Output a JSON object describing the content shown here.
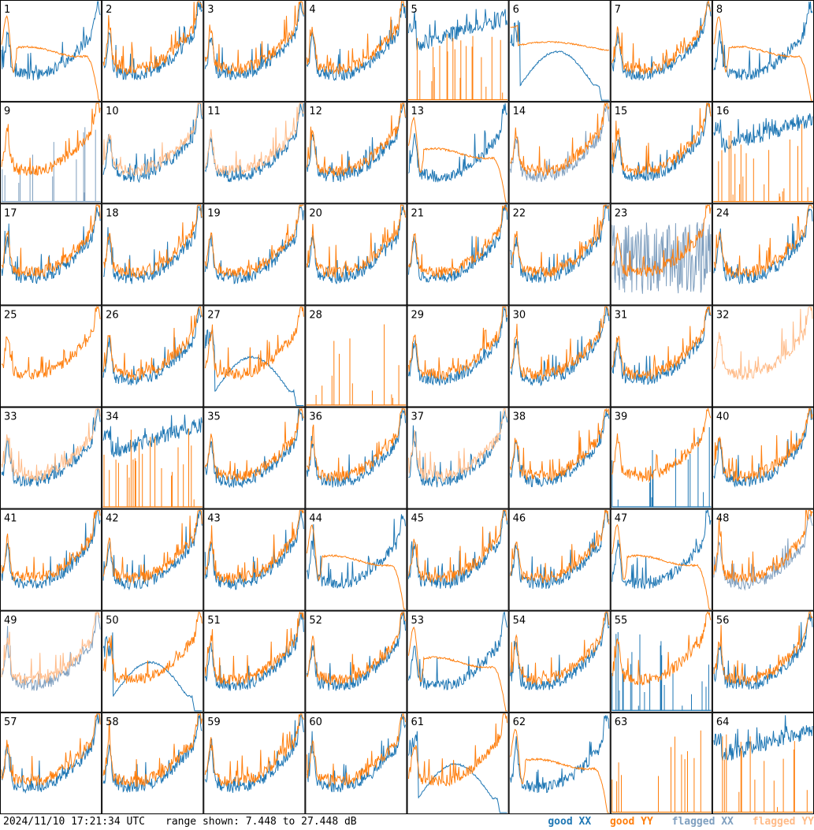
{
  "chart_data": {
    "type": "line",
    "layout": "small-multiples 8x8",
    "panel_labels": [
      "1",
      "2",
      "3",
      "4",
      "5",
      "6",
      "7",
      "8",
      "9",
      "10",
      "11",
      "12",
      "13",
      "14",
      "15",
      "16",
      "17",
      "18",
      "19",
      "20",
      "21",
      "22",
      "23",
      "24",
      "25",
      "26",
      "27",
      "28",
      "29",
      "30",
      "31",
      "32",
      "33",
      "34",
      "35",
      "36",
      "37",
      "38",
      "39",
      "40",
      "41",
      "42",
      "43",
      "44",
      "45",
      "46",
      "47",
      "48",
      "49",
      "50",
      "51",
      "52",
      "53",
      "54",
      "55",
      "56",
      "57",
      "58",
      "59",
      "60",
      "61",
      "62",
      "63",
      "64"
    ],
    "y_range_db": [
      7.448,
      27.448
    ],
    "colors": {
      "good_xx": "#1f77b4",
      "good_yy": "#ff7f0e",
      "flagged_xx": "#7f9fbf",
      "flagged_yy": "#ffbb88"
    },
    "profiles_note": "spectra per tile; estimated shape class per panel",
    "panels": [
      {
        "id": 1,
        "xx": "normal",
        "yy": "rolloff"
      },
      {
        "id": 2,
        "xx": "normal",
        "yy": "normal"
      },
      {
        "id": 3,
        "xx": "normal",
        "yy": "normal"
      },
      {
        "id": 4,
        "xx": "normal",
        "yy": "normal"
      },
      {
        "id": 5,
        "xx": "high",
        "yy": "spikes"
      },
      {
        "id": 6,
        "xx": "bump",
        "yy": "flat"
      },
      {
        "id": 7,
        "xx": "normal",
        "yy": "normal"
      },
      {
        "id": 8,
        "xx": "normal",
        "yy": "rolloff"
      },
      {
        "id": 9,
        "xx": "flag-spikes",
        "yy": "normal"
      },
      {
        "id": 10,
        "xx": "normal",
        "yy": "flag"
      },
      {
        "id": 11,
        "xx": "normal",
        "yy": "flag"
      },
      {
        "id": 12,
        "xx": "normal",
        "yy": "normal"
      },
      {
        "id": 13,
        "xx": "normal",
        "yy": "rolloff"
      },
      {
        "id": 14,
        "xx": "flag",
        "yy": "normal"
      },
      {
        "id": 15,
        "xx": "normal",
        "yy": "normal"
      },
      {
        "id": 16,
        "xx": "high",
        "yy": "spikes"
      },
      {
        "id": 17,
        "xx": "normal",
        "yy": "normal"
      },
      {
        "id": 18,
        "xx": "normal",
        "yy": "normal"
      },
      {
        "id": 19,
        "xx": "normal",
        "yy": "normal"
      },
      {
        "id": 20,
        "xx": "normal",
        "yy": "normal"
      },
      {
        "id": 21,
        "xx": "normal",
        "yy": "normal"
      },
      {
        "id": 22,
        "xx": "normal",
        "yy": "normal"
      },
      {
        "id": 23,
        "xx": "flag-noise",
        "yy": "normal"
      },
      {
        "id": 24,
        "xx": "normal",
        "yy": "normal"
      },
      {
        "id": 25,
        "xx": "none",
        "yy": "normal"
      },
      {
        "id": 26,
        "xx": "normal",
        "yy": "normal"
      },
      {
        "id": 27,
        "xx": "bump",
        "yy": "normal"
      },
      {
        "id": 28,
        "xx": "none",
        "yy": "spikes"
      },
      {
        "id": 29,
        "xx": "normal",
        "yy": "normal"
      },
      {
        "id": 30,
        "xx": "normal",
        "yy": "normal"
      },
      {
        "id": 31,
        "xx": "normal",
        "yy": "normal"
      },
      {
        "id": 32,
        "xx": "none",
        "yy": "flag"
      },
      {
        "id": 33,
        "xx": "normal",
        "yy": "flag"
      },
      {
        "id": 34,
        "xx": "high",
        "yy": "spikes"
      },
      {
        "id": 35,
        "xx": "normal",
        "yy": "normal"
      },
      {
        "id": 36,
        "xx": "normal",
        "yy": "normal"
      },
      {
        "id": 37,
        "xx": "normal",
        "yy": "flag"
      },
      {
        "id": 38,
        "xx": "normal",
        "yy": "normal"
      },
      {
        "id": 39,
        "xx": "spikes",
        "yy": "normal"
      },
      {
        "id": 40,
        "xx": "normal",
        "yy": "normal"
      },
      {
        "id": 41,
        "xx": "normal",
        "yy": "normal"
      },
      {
        "id": 42,
        "xx": "normal",
        "yy": "normal"
      },
      {
        "id": 43,
        "xx": "normal",
        "yy": "normal"
      },
      {
        "id": 44,
        "xx": "normal",
        "yy": "rolloff"
      },
      {
        "id": 45,
        "xx": "normal",
        "yy": "normal"
      },
      {
        "id": 46,
        "xx": "normal",
        "yy": "normal"
      },
      {
        "id": 47,
        "xx": "normal",
        "yy": "rolloff"
      },
      {
        "id": 48,
        "xx": "flag",
        "yy": "normal"
      },
      {
        "id": 49,
        "xx": "flag",
        "yy": "flag"
      },
      {
        "id": 50,
        "xx": "bump",
        "yy": "normal"
      },
      {
        "id": 51,
        "xx": "normal",
        "yy": "normal"
      },
      {
        "id": 52,
        "xx": "normal",
        "yy": "normal"
      },
      {
        "id": 53,
        "xx": "normal",
        "yy": "rolloff"
      },
      {
        "id": 54,
        "xx": "normal",
        "yy": "normal"
      },
      {
        "id": 55,
        "xx": "spikes",
        "yy": "normal"
      },
      {
        "id": 56,
        "xx": "normal",
        "yy": "normal"
      },
      {
        "id": 57,
        "xx": "normal",
        "yy": "normal"
      },
      {
        "id": 58,
        "xx": "normal",
        "yy": "normal"
      },
      {
        "id": 59,
        "xx": "normal",
        "yy": "normal"
      },
      {
        "id": 60,
        "xx": "normal",
        "yy": "normal"
      },
      {
        "id": 61,
        "xx": "bump",
        "yy": "normal"
      },
      {
        "id": 62,
        "xx": "normal",
        "yy": "rolloff"
      },
      {
        "id": 63,
        "xx": "none",
        "yy": "spikes"
      },
      {
        "id": 64,
        "xx": "high",
        "yy": "spikes"
      }
    ]
  },
  "footer": {
    "timestamp": "2024/11/10 17:21:34 UTC",
    "range_text": "range shown: 7.448 to 27.448 dB",
    "legend": {
      "good_xx": "good XX",
      "good_yy": "good YY",
      "flagged_xx": "flagged XX",
      "flagged_yy": "flagged YY"
    }
  }
}
